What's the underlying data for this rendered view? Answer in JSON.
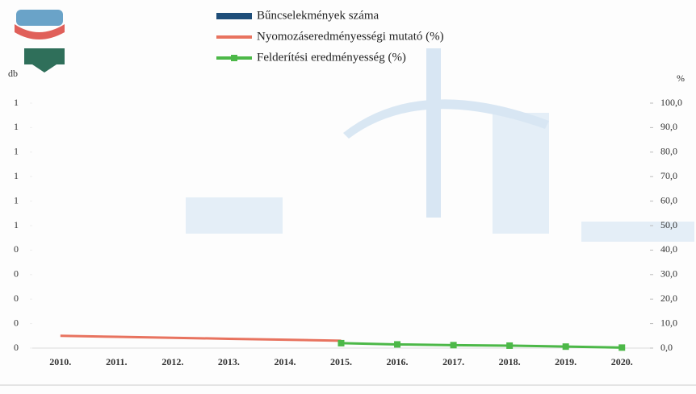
{
  "chart_data": {
    "type": "combo",
    "y_label": "db",
    "y2_label": "%",
    "categories": [
      "2010.",
      "2011.",
      "2012.",
      "2013.",
      "2014.",
      "2015.",
      "2016.",
      "2017.",
      "2018.",
      "2019.",
      "2020."
    ],
    "series": [
      {
        "name": "Bűncselekmények száma",
        "type": "bar",
        "color": "#1f4e79",
        "values": [
          0,
          0,
          0,
          0,
          0,
          0,
          0,
          0,
          0,
          0,
          0
        ]
      },
      {
        "name": "Nyomozáseredményességi mutató (%)",
        "type": "line",
        "axis": "y2",
        "color": "#e8735f",
        "values": [
          5,
          4.6,
          4.2,
          3.8,
          3.4,
          3,
          null,
          null,
          null,
          null,
          null
        ]
      },
      {
        "name": "Felderítési eredményesség (%)",
        "type": "line",
        "axis": "y2",
        "marker": "square",
        "color": "#4cb848",
        "values": [
          null,
          null,
          null,
          null,
          null,
          2,
          1.5,
          1.2,
          1,
          0.6,
          0.2
        ]
      }
    ],
    "ylim": [
      0,
      1
    ],
    "yticks": [
      0,
      {
        "value": 0.1,
        "label": "0"
      },
      {
        "value": 0.2,
        "label": "0"
      },
      {
        "value": 0.3,
        "label": "0"
      },
      {
        "value": 0.4,
        "label": "0"
      },
      {
        "value": 0.5,
        "label": "1"
      },
      {
        "value": 0.6,
        "label": "1"
      },
      {
        "value": 0.7,
        "label": "1"
      },
      {
        "value": 0.8,
        "label": "1"
      },
      {
        "value": 0.9,
        "label": "1"
      },
      1
    ],
    "y2lim": [
      0,
      100
    ],
    "y2ticks": [
      {
        "value": 0,
        "label": "0,0"
      },
      {
        "value": 10,
        "label": "10,0"
      },
      {
        "value": 20,
        "label": "20,0"
      },
      {
        "value": 30,
        "label": "30,0"
      },
      {
        "value": 40,
        "label": "40,0"
      },
      {
        "value": 50,
        "label": "50,0"
      },
      {
        "value": 60,
        "label": "60,0"
      },
      {
        "value": 70,
        "label": "70,0"
      },
      {
        "value": 80,
        "label": "80,0"
      },
      {
        "value": 90,
        "label": "90,0"
      },
      {
        "value": 100,
        "label": "100,0"
      }
    ],
    "legend_position": "top"
  }
}
